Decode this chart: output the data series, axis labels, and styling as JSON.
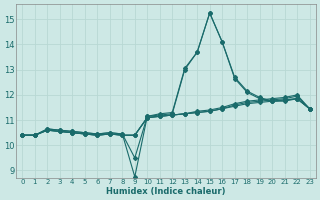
{
  "xlabel": "Humidex (Indice chaleur)",
  "xlim": [
    -0.5,
    23.5
  ],
  "ylim": [
    8.7,
    15.6
  ],
  "yticks": [
    9,
    10,
    11,
    12,
    13,
    14,
    15
  ],
  "xticks": [
    0,
    1,
    2,
    3,
    4,
    5,
    6,
    7,
    8,
    9,
    10,
    11,
    12,
    13,
    14,
    15,
    16,
    17,
    18,
    19,
    20,
    21,
    22,
    23
  ],
  "background_color": "#cde8e5",
  "line_color": "#1a6b6b",
  "grid_color": "#b8d8d4",
  "lines": [
    [
      10.4,
      10.4,
      10.6,
      10.55,
      10.5,
      10.45,
      10.4,
      10.45,
      10.4,
      10.4,
      11.1,
      11.15,
      11.2,
      11.25,
      11.3,
      11.35,
      11.45,
      11.55,
      11.65,
      11.7,
      11.75,
      11.8,
      11.85,
      11.45
    ],
    [
      10.4,
      10.4,
      10.6,
      10.55,
      10.5,
      10.45,
      10.4,
      10.45,
      10.4,
      10.4,
      11.1,
      11.15,
      11.2,
      11.25,
      11.3,
      11.35,
      11.45,
      11.6,
      11.7,
      11.75,
      11.8,
      11.85,
      11.95,
      11.45
    ],
    [
      10.4,
      10.4,
      10.6,
      10.55,
      10.5,
      10.45,
      10.4,
      10.45,
      10.4,
      10.4,
      11.1,
      11.15,
      11.2,
      11.25,
      11.35,
      11.4,
      11.5,
      11.65,
      11.75,
      11.8,
      11.85,
      11.9,
      12.0,
      11.45
    ],
    [
      10.4,
      10.4,
      10.65,
      10.6,
      10.55,
      10.5,
      10.45,
      10.5,
      10.45,
      9.5,
      11.15,
      11.2,
      11.25,
      13.0,
      13.7,
      15.25,
      14.1,
      12.65,
      12.1,
      11.85,
      11.75,
      11.75,
      11.85,
      11.45
    ],
    [
      10.4,
      10.4,
      10.65,
      10.6,
      10.55,
      10.5,
      10.45,
      10.5,
      10.45,
      8.75,
      11.15,
      11.25,
      11.3,
      13.05,
      13.7,
      15.25,
      14.1,
      12.7,
      12.15,
      11.9,
      11.75,
      11.8,
      11.85,
      11.45
    ]
  ]
}
